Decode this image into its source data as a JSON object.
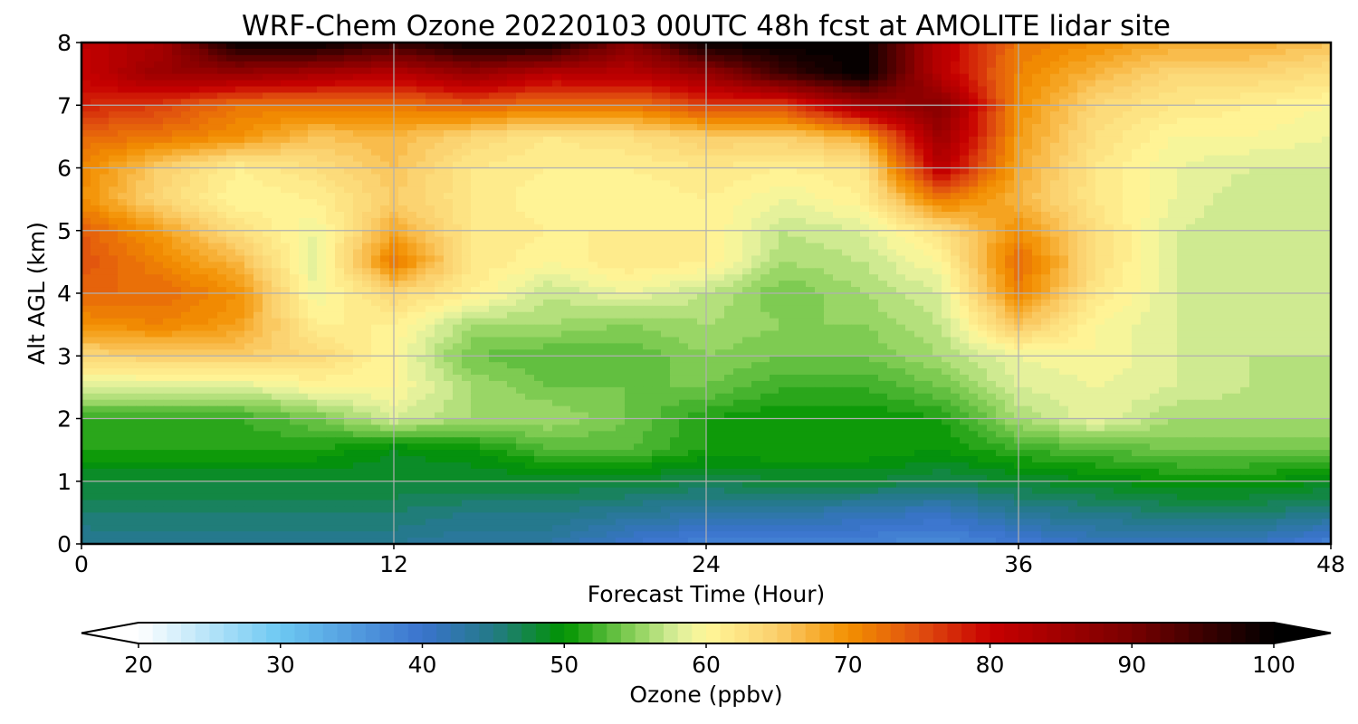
{
  "chart_data": {
    "type": "heatmap",
    "title": "WRF-Chem Ozone  20220103 00UTC 48h fcst at AMOLITE lidar site",
    "xlabel": "Forecast Time (Hour)",
    "ylabel": "Alt AGL (km)",
    "xlim": [
      0,
      48
    ],
    "ylim": [
      0,
      8
    ],
    "xticks": [
      0,
      12,
      24,
      36,
      48
    ],
    "yticks": [
      0,
      1,
      2,
      3,
      4,
      5,
      6,
      7,
      8
    ],
    "grid": true,
    "x": [
      0,
      3,
      6,
      9,
      12,
      15,
      18,
      21,
      24,
      27,
      30,
      33,
      36,
      39,
      42,
      45,
      48
    ],
    "y": [
      0,
      0.5,
      1,
      1.5,
      2,
      2.5,
      3,
      3.5,
      4,
      4.5,
      5,
      5.5,
      6,
      6.5,
      7,
      7.5,
      8
    ],
    "z": [
      [
        44,
        44,
        44,
        44,
        44,
        43,
        43,
        40,
        38,
        38,
        38,
        37,
        39,
        41,
        41,
        41,
        38
      ],
      [
        46,
        46,
        46,
        46,
        46,
        45,
        45,
        44,
        43,
        43,
        42,
        41,
        44,
        45,
        46,
        46,
        45
      ],
      [
        48,
        48,
        48,
        48,
        48,
        48,
        48,
        48,
        47,
        48,
        48,
        47,
        48,
        49,
        50,
        50,
        49
      ],
      [
        51,
        51,
        51,
        51,
        49,
        50,
        53,
        53,
        51,
        51,
        51,
        50,
        52,
        53,
        54,
        54,
        54
      ],
      [
        52,
        52,
        52,
        54,
        58,
        56,
        56,
        54,
        51,
        50,
        50,
        51,
        56,
        59,
        56,
        56,
        56
      ],
      [
        58,
        58,
        58,
        60,
        60,
        56,
        54,
        54,
        54,
        52,
        52,
        54,
        58,
        59,
        58,
        57,
        56
      ],
      [
        64,
        65,
        65,
        64,
        60,
        54,
        53,
        53,
        55,
        54,
        54,
        56,
        59,
        60,
        58,
        57,
        57
      ],
      [
        70,
        71,
        69,
        61,
        61,
        56,
        56,
        55,
        56,
        55,
        55,
        57,
        66,
        60,
        58,
        57,
        57
      ],
      [
        73,
        73,
        70,
        59,
        64,
        61,
        57,
        59,
        57,
        54,
        56,
        58,
        71,
        62,
        58,
        57,
        57
      ],
      [
        75,
        71,
        67,
        58,
        72,
        62,
        60,
        62,
        61,
        56,
        57,
        60,
        73,
        63,
        58,
        57,
        57
      ],
      [
        74,
        69,
        63,
        59,
        68,
        62,
        61,
        61,
        61,
        57,
        58,
        63,
        70,
        63,
        58,
        57,
        57
      ],
      [
        70,
        64,
        60,
        61,
        65,
        62,
        60,
        60,
        61,
        59,
        61,
        72,
        67,
        62,
        59,
        57,
        57
      ],
      [
        71,
        65,
        61,
        63,
        66,
        62,
        61,
        61,
        62,
        61,
        62,
        82,
        68,
        62,
        59,
        58,
        58
      ],
      [
        73,
        72,
        70,
        66,
        67,
        64,
        62,
        63,
        65,
        65,
        68,
        86,
        69,
        63,
        60,
        60,
        59
      ],
      [
        78,
        76,
        72,
        72,
        72,
        74,
        72,
        72,
        76,
        76,
        85,
        88,
        70,
        64,
        62,
        61,
        60
      ],
      [
        80,
        86,
        86,
        84,
        82,
        86,
        82,
        82,
        86,
        95,
        100,
        82,
        71,
        67,
        64,
        64,
        63
      ],
      [
        81,
        84,
        100,
        100,
        96,
        100,
        100,
        88,
        100,
        100,
        100,
        82,
        72,
        70,
        68,
        68,
        66
      ]
    ],
    "colorbar": {
      "label": "Ozone  (ppbv)",
      "vmin": 20,
      "vmax": 100,
      "ticks": [
        20,
        30,
        40,
        50,
        60,
        70,
        80,
        90,
        100
      ],
      "extend": "both",
      "stops": [
        {
          "v": 20,
          "c": "#ffffff"
        },
        {
          "v": 30,
          "c": "#6cc8f2"
        },
        {
          "v": 40,
          "c": "#3a73cd"
        },
        {
          "v": 45,
          "c": "#237a86"
        },
        {
          "v": 50,
          "c": "#009400"
        },
        {
          "v": 55,
          "c": "#8cd15b"
        },
        {
          "v": 58,
          "c": "#dcef9c"
        },
        {
          "v": 60,
          "c": "#fff799"
        },
        {
          "v": 65,
          "c": "#fbcf6c"
        },
        {
          "v": 70,
          "c": "#f39000"
        },
        {
          "v": 75,
          "c": "#e0500f"
        },
        {
          "v": 80,
          "c": "#c80000"
        },
        {
          "v": 90,
          "c": "#780000"
        },
        {
          "v": 100,
          "c": "#000000"
        }
      ],
      "n_levels": 80
    }
  }
}
